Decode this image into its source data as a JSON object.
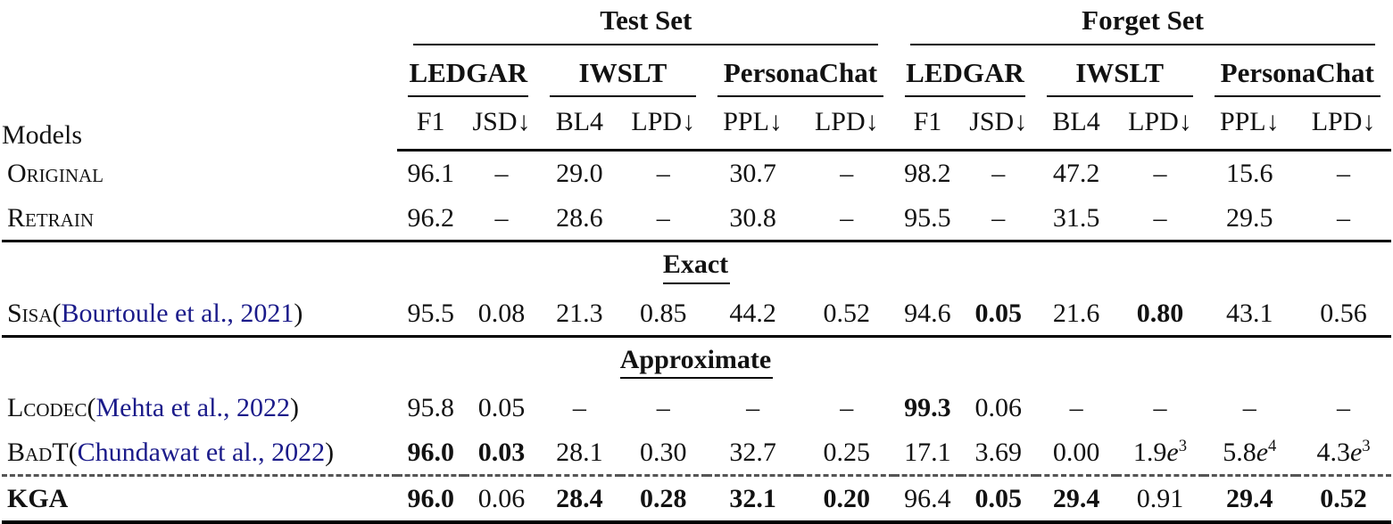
{
  "table": {
    "models_label": "Models",
    "sets": [
      {
        "label": "Test Set"
      },
      {
        "label": "Forget Set"
      }
    ],
    "datasets": [
      {
        "label": "LEDGAR"
      },
      {
        "label": "IWSLT"
      },
      {
        "label": "PersonaChat"
      },
      {
        "label": "LEDGAR"
      },
      {
        "label": "IWSLT"
      },
      {
        "label": "PersonaChat"
      }
    ],
    "metrics": [
      "F1",
      "JSD↓",
      "BL4",
      "LPD↓",
      "PPL↓",
      "LPD↓",
      "F1",
      "JSD↓",
      "BL4",
      "LPD↓",
      "PPL↓",
      "LPD↓"
    ],
    "colors": {
      "citation_link": "#1b1b8a",
      "text": "#121212",
      "background": "#ffffff"
    },
    "groups": [
      {
        "heading": null,
        "rows": [
          {
            "label": {
              "text": "Original",
              "sc": true
            },
            "values": [
              "96.1",
              "–",
              "29.0",
              "–",
              "30.7",
              "–",
              "98.2",
              "–",
              "47.2",
              "–",
              "15.6",
              "–"
            ]
          },
          {
            "label": {
              "text": "Retrain",
              "sc": true
            },
            "rule_below": true,
            "values": [
              "96.2",
              "–",
              "28.6",
              "–",
              "30.8",
              "–",
              "95.5",
              "–",
              "31.5",
              "–",
              "29.5",
              "–"
            ]
          }
        ]
      },
      {
        "heading": "Exact",
        "rows": [
          {
            "label": {
              "text": "Sisa",
              "sc": true,
              "cite": "Bourtoule et al., 2021"
            },
            "rule_below": true,
            "values": [
              "95.5",
              "0.08",
              "21.3",
              "0.85",
              "44.2",
              "0.52",
              "94.6",
              {
                "v": "0.05",
                "b": true
              },
              "21.6",
              {
                "v": "0.80",
                "b": true
              },
              "43.1",
              "0.56"
            ]
          }
        ]
      },
      {
        "heading": "Approximate",
        "rows": [
          {
            "label": {
              "text": "Lcodec",
              "sc": true,
              "cite": "Mehta et al., 2022"
            },
            "values": [
              "95.8",
              "0.05",
              "–",
              "–",
              "–",
              "–",
              {
                "v": "99.3",
                "b": true
              },
              "0.06",
              "–",
              "–",
              "–",
              "–"
            ]
          },
          {
            "label": {
              "text": "BadT",
              "sc": true,
              "cite": "Chundawat et al., 2022"
            },
            "dashed_below": true,
            "values": [
              {
                "v": "96.0",
                "b": true
              },
              {
                "v": "0.03",
                "b": true
              },
              "28.1",
              "0.30",
              "32.7",
              "0.25",
              "17.1",
              "3.69",
              "0.00",
              {
                "v": "1.9",
                "e": "3"
              },
              {
                "v": "5.8",
                "e": "4"
              },
              {
                "v": "4.3",
                "e": "3"
              }
            ]
          },
          {
            "label": {
              "text": "KGA",
              "bold": true
            },
            "values": [
              {
                "v": "96.0",
                "b": true
              },
              "0.06",
              {
                "v": "28.4",
                "b": true
              },
              {
                "v": "0.28",
                "b": true
              },
              {
                "v": "32.1",
                "b": true
              },
              {
                "v": "0.20",
                "b": true
              },
              "96.4",
              {
                "v": "0.05",
                "b": true
              },
              {
                "v": "29.4",
                "b": true
              },
              "0.91",
              {
                "v": "29.4",
                "b": true
              },
              {
                "v": "0.52",
                "b": true
              }
            ]
          }
        ]
      }
    ]
  }
}
